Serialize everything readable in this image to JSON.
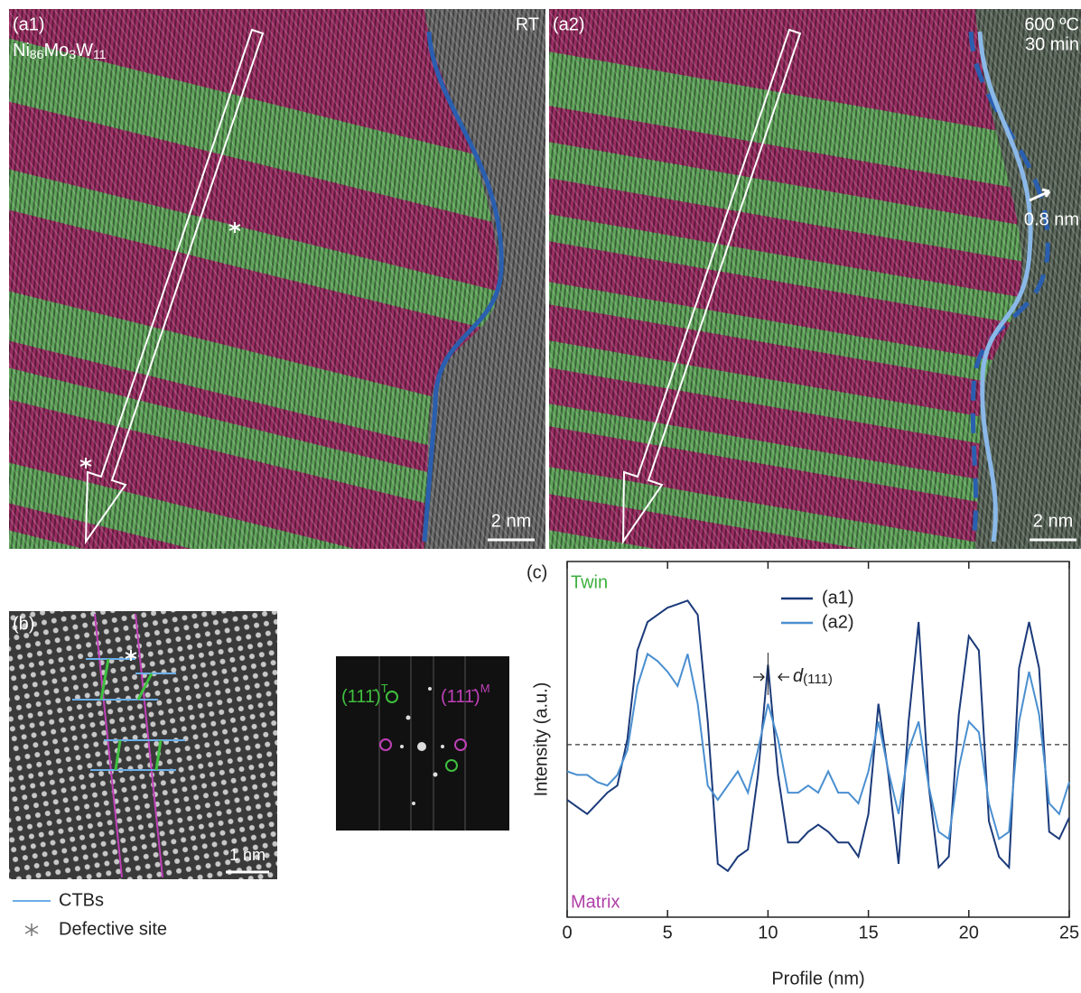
{
  "panels": {
    "a1": {
      "label": "(a1)",
      "composition": [
        "Ni",
        "86",
        "Mo",
        "3",
        "W",
        "11"
      ],
      "condition": "RT",
      "scale_bar": "2 nm"
    },
    "a2": {
      "label": "(a2)",
      "condition": [
        "600 ºC",
        "30 min"
      ],
      "annotation": "0.8 nm",
      "scale_bar": "2 nm"
    },
    "b": {
      "label": "(b)",
      "scale_bar": "1 nm",
      "fft_spots": [
        {
          "text": "(111̄)",
          "superscript": "T",
          "color": "#3fc03f"
        },
        {
          "text": "(111̄)",
          "superscript": "M",
          "color": "#c040b8"
        }
      ]
    },
    "legend": [
      "CTBs",
      "Defective site"
    ]
  },
  "chart_data": {
    "type": "line",
    "panel_label": "(c)",
    "regions": [
      "Twin",
      "Matrix"
    ],
    "annotation": {
      "italic": "d",
      "text": "(111)"
    },
    "x_label": "Profile (nm)",
    "y_label": "Intensity (a.u.)",
    "xlim": [
      0,
      25
    ],
    "ylim": [
      0,
      1
    ],
    "xticks": [
      0,
      5,
      10,
      15,
      20,
      25
    ],
    "hline": 0.485,
    "x": [
      0,
      0.5,
      1,
      1.5,
      2,
      2.5,
      3,
      3.5,
      4,
      4.5,
      5,
      5.5,
      6,
      6.5,
      7,
      7.5,
      8,
      8.5,
      9,
      9.5,
      10,
      10.5,
      11,
      11.5,
      12,
      12.5,
      13,
      13.5,
      14,
      14.5,
      15,
      15.5,
      16,
      16.5,
      17,
      17.5,
      18,
      18.5,
      19,
      19.5,
      20,
      20.5,
      21,
      21.5,
      22,
      22.5,
      23,
      23.5,
      24,
      24.5,
      25
    ],
    "series": [
      {
        "name": "(a1)",
        "color": "#1b3a7a",
        "values": [
          0.33,
          0.31,
          0.29,
          0.32,
          0.35,
          0.37,
          0.5,
          0.75,
          0.83,
          0.85,
          0.87,
          0.88,
          0.89,
          0.85,
          0.55,
          0.15,
          0.13,
          0.17,
          0.19,
          0.4,
          0.71,
          0.4,
          0.21,
          0.21,
          0.24,
          0.26,
          0.24,
          0.21,
          0.21,
          0.17,
          0.29,
          0.6,
          0.4,
          0.15,
          0.55,
          0.83,
          0.37,
          0.14,
          0.17,
          0.57,
          0.79,
          0.75,
          0.27,
          0.17,
          0.14,
          0.7,
          0.83,
          0.7,
          0.24,
          0.22,
          0.28
        ]
      },
      {
        "name": "(a2)",
        "color": "#4a8fd0",
        "values": [
          0.41,
          0.4,
          0.4,
          0.38,
          0.37,
          0.4,
          0.47,
          0.65,
          0.74,
          0.72,
          0.69,
          0.65,
          0.74,
          0.6,
          0.37,
          0.33,
          0.37,
          0.41,
          0.35,
          0.47,
          0.6,
          0.5,
          0.35,
          0.35,
          0.37,
          0.35,
          0.41,
          0.35,
          0.35,
          0.32,
          0.41,
          0.55,
          0.41,
          0.29,
          0.47,
          0.55,
          0.37,
          0.24,
          0.22,
          0.42,
          0.55,
          0.52,
          0.32,
          0.22,
          0.24,
          0.55,
          0.69,
          0.57,
          0.32,
          0.29,
          0.38
        ]
      }
    ]
  }
}
